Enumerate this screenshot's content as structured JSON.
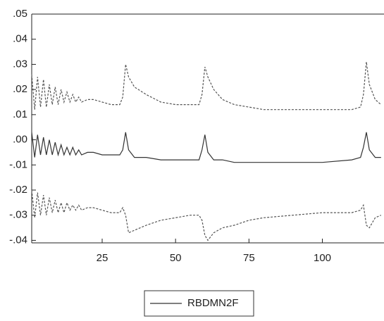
{
  "chart_data": {
    "type": "line",
    "x": [
      1,
      2,
      3,
      4,
      5,
      6,
      7,
      8,
      9,
      10,
      11,
      12,
      13,
      14,
      15,
      16,
      17,
      18,
      20,
      22,
      25,
      28,
      31,
      32,
      33,
      34,
      36,
      40,
      45,
      50,
      55,
      58,
      59,
      60,
      61,
      63,
      66,
      70,
      75,
      80,
      90,
      100,
      110,
      113,
      114,
      115,
      116,
      118,
      120
    ],
    "series": [
      {
        "name": "RBDMN2F",
        "color": "#333333",
        "values": [
          0.003,
          -0.007,
          0.002,
          -0.006,
          0.001,
          -0.006,
          0.0,
          -0.006,
          -0.001,
          -0.006,
          -0.002,
          -0.006,
          -0.003,
          -0.006,
          -0.003,
          -0.006,
          -0.004,
          -0.006,
          -0.005,
          -0.005,
          -0.006,
          -0.006,
          -0.006,
          -0.004,
          0.003,
          -0.004,
          -0.007,
          -0.007,
          -0.008,
          -0.008,
          -0.008,
          -0.008,
          -0.004,
          0.002,
          -0.005,
          -0.008,
          -0.008,
          -0.009,
          -0.009,
          -0.009,
          -0.009,
          -0.009,
          -0.008,
          -0.007,
          -0.003,
          0.003,
          -0.004,
          -0.007,
          -0.007
        ]
      }
    ],
    "bands": {
      "color": "#555555",
      "upper": [
        0.026,
        0.012,
        0.025,
        0.013,
        0.024,
        0.013,
        0.022,
        0.014,
        0.021,
        0.014,
        0.02,
        0.015,
        0.019,
        0.015,
        0.018,
        0.015,
        0.017,
        0.015,
        0.016,
        0.016,
        0.015,
        0.014,
        0.014,
        0.017,
        0.03,
        0.025,
        0.021,
        0.018,
        0.015,
        0.014,
        0.014,
        0.014,
        0.018,
        0.029,
        0.025,
        0.02,
        0.016,
        0.014,
        0.013,
        0.012,
        0.012,
        0.012,
        0.012,
        0.013,
        0.018,
        0.031,
        0.022,
        0.016,
        0.014
      ],
      "lower": [
        -0.02,
        -0.031,
        -0.021,
        -0.03,
        -0.022,
        -0.03,
        -0.023,
        -0.029,
        -0.024,
        -0.029,
        -0.025,
        -0.029,
        -0.025,
        -0.028,
        -0.026,
        -0.028,
        -0.026,
        -0.028,
        -0.027,
        -0.027,
        -0.028,
        -0.029,
        -0.029,
        -0.027,
        -0.03,
        -0.037,
        -0.036,
        -0.034,
        -0.032,
        -0.031,
        -0.03,
        -0.03,
        -0.032,
        -0.038,
        -0.04,
        -0.037,
        -0.035,
        -0.034,
        -0.032,
        -0.031,
        -0.03,
        -0.029,
        -0.029,
        -0.028,
        -0.026,
        -0.034,
        -0.035,
        -0.031,
        -0.03
      ]
    },
    "xlim": [
      1,
      121
    ],
    "ylim": [
      -0.041,
      0.05
    ],
    "xticks": [
      25,
      50,
      75,
      100
    ],
    "yticks": [
      {
        "value": 0.05,
        "label": ".05"
      },
      {
        "value": 0.04,
        "label": ".04"
      },
      {
        "value": 0.03,
        "label": ".03"
      },
      {
        "value": 0.02,
        "label": ".02"
      },
      {
        "value": 0.01,
        "label": ".01"
      },
      {
        "value": 0,
        "label": ".00"
      },
      {
        "value": -0.01,
        "label": "-.01"
      },
      {
        "value": -0.02,
        "label": "-.02"
      },
      {
        "value": -0.03,
        "label": "-.03"
      },
      {
        "value": -0.04,
        "label": "-.04"
      }
    ],
    "legend": "bottom"
  }
}
